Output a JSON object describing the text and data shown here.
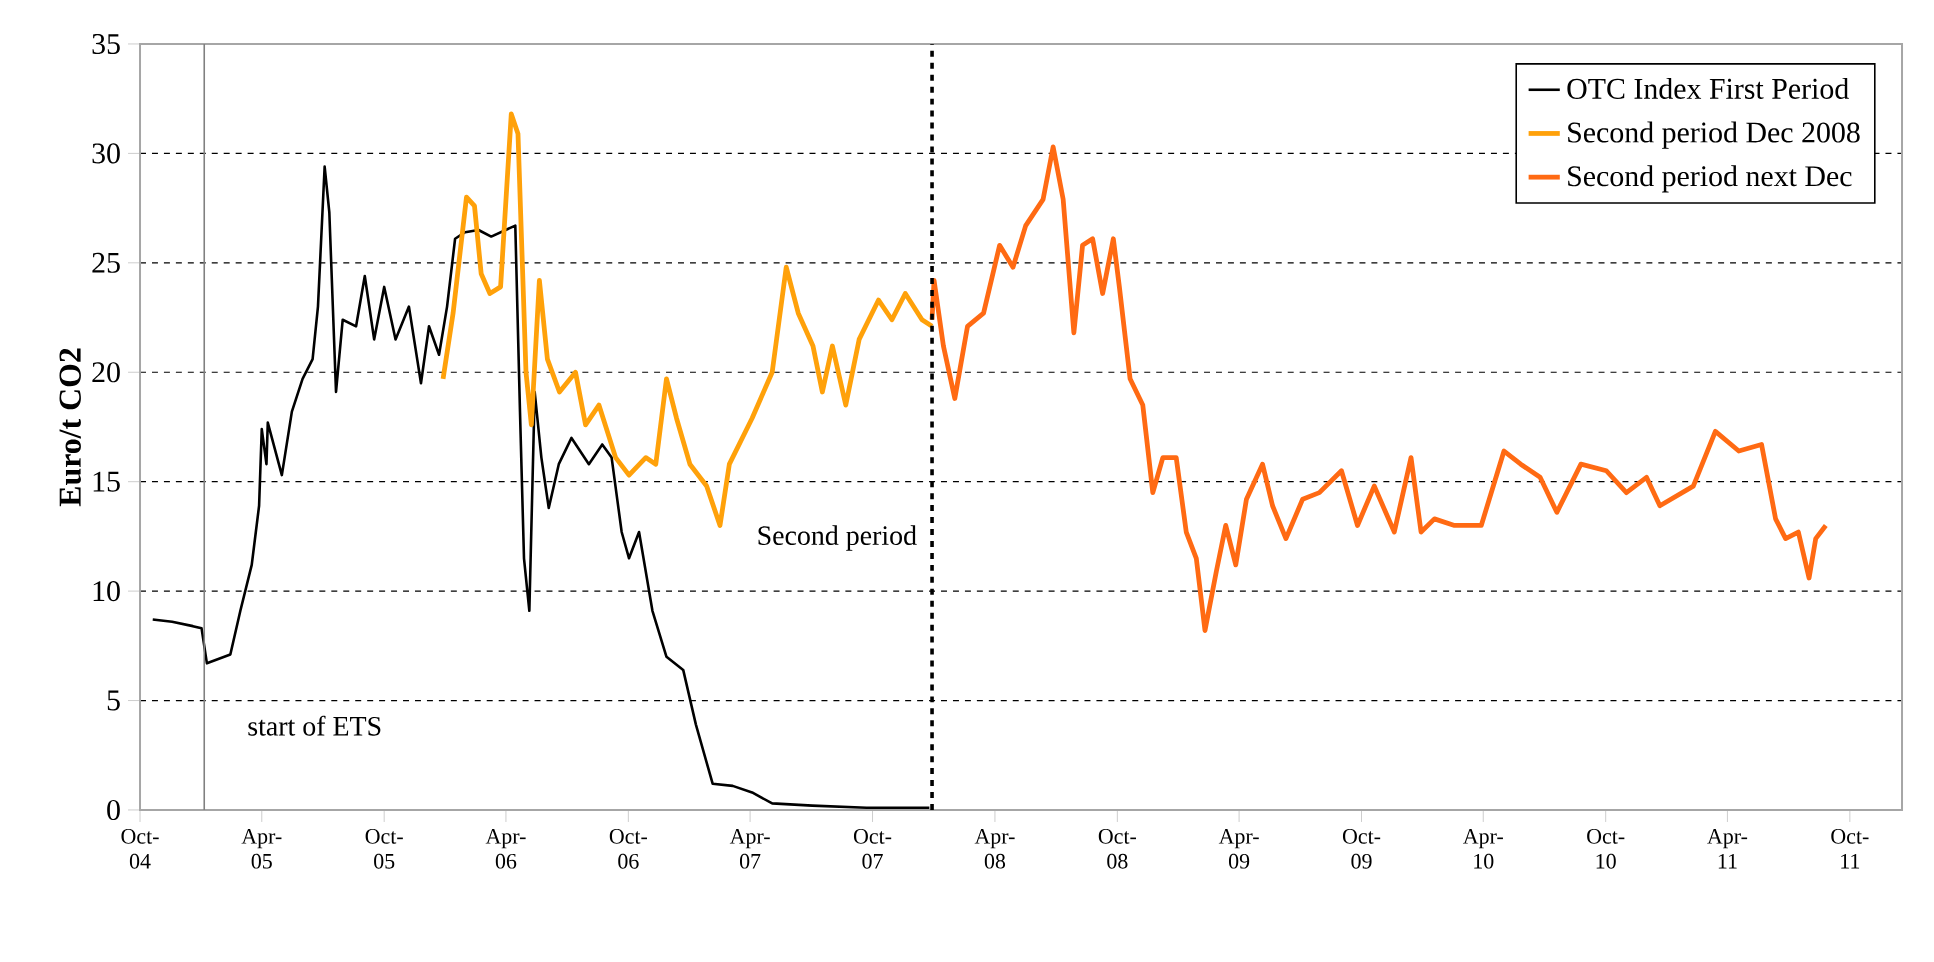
{
  "chart_data": {
    "type": "line",
    "ylabel": "Euro/t CO2",
    "xlim": [
      "2004-10-01",
      "2011-12-18"
    ],
    "ylim": [
      0,
      35
    ],
    "yticks": [
      0,
      5,
      10,
      15,
      20,
      25,
      30,
      35
    ],
    "xticks": [
      {
        "value": "2004-10-01",
        "label": "Oct-04"
      },
      {
        "value": "2005-04-01",
        "label": "Apr-05"
      },
      {
        "value": "2005-10-01",
        "label": "Oct-05"
      },
      {
        "value": "2006-04-01",
        "label": "Apr-06"
      },
      {
        "value": "2006-10-01",
        "label": "Oct-06"
      },
      {
        "value": "2007-04-01",
        "label": "Apr-07"
      },
      {
        "value": "2007-10-01",
        "label": "Oct-07"
      },
      {
        "value": "2008-04-01",
        "label": "Apr-08"
      },
      {
        "value": "2008-10-01",
        "label": "Oct-08"
      },
      {
        "value": "2009-04-01",
        "label": "Apr-09"
      },
      {
        "value": "2009-10-01",
        "label": "Oct-09"
      },
      {
        "value": "2010-04-01",
        "label": "Apr-10"
      },
      {
        "value": "2010-10-01",
        "label": "Oct-10"
      },
      {
        "value": "2011-04-01",
        "label": "Apr-11"
      },
      {
        "value": "2011-10-01",
        "label": "Oct-11"
      }
    ],
    "grid": "y",
    "legend": "top right",
    "series": [
      {
        "name": "OTC Index First Period",
        "color": "#000000",
        "x": [
          "2004-10-20",
          "2004-11-18",
          "2004-12-19",
          "2005-01-01",
          "2005-01-09",
          "2005-02-13",
          "2005-02-28",
          "2005-03-17",
          "2005-03-28",
          "2005-04-01",
          "2005-04-08",
          "2005-04-10",
          "2005-05-01",
          "2005-05-16",
          "2005-06-01",
          "2005-06-16",
          "2005-06-24",
          "2005-07-04",
          "2005-07-11",
          "2005-07-21",
          "2005-07-31",
          "2005-08-20",
          "2005-09-02",
          "2005-09-16",
          "2005-10-01",
          "2005-10-18",
          "2005-11-07",
          "2005-11-25",
          "2005-12-07",
          "2005-12-22",
          "2006-01-03",
          "2006-01-15",
          "2006-01-30",
          "2006-02-19",
          "2006-03-10",
          "2006-04-15",
          "2006-04-22",
          "2006-04-28",
          "2006-05-06",
          "2006-05-14",
          "2006-05-24",
          "2006-06-04",
          "2006-06-19",
          "2006-07-08",
          "2006-08-03",
          "2006-08-23",
          "2006-09-06",
          "2006-09-21",
          "2006-10-02",
          "2006-10-17",
          "2006-11-06",
          "2006-11-27",
          "2006-12-22",
          "2007-01-10",
          "2007-02-04",
          "2007-03-06",
          "2007-04-04",
          "2007-05-04",
          "2007-07-03",
          "2007-09-22",
          "2007-12-25"
        ],
        "values": [
          8.7,
          8.6,
          8.4,
          8.3,
          6.7,
          7.1,
          9.1,
          11.2,
          13.9,
          17.4,
          15.8,
          17.7,
          15.3,
          18.2,
          19.7,
          20.6,
          23.0,
          29.4,
          27.3,
          19.1,
          22.4,
          22.1,
          24.4,
          21.5,
          23.9,
          21.5,
          23.0,
          19.5,
          22.1,
          20.8,
          23.0,
          26.1,
          26.4,
          26.5,
          26.2,
          26.7,
          18.2,
          11.5,
          9.1,
          19.1,
          16.1,
          13.8,
          15.8,
          17.0,
          15.8,
          16.7,
          16.1,
          12.7,
          11.5,
          12.7,
          9.1,
          7.0,
          6.4,
          3.9,
          1.2,
          1.1,
          0.8,
          0.3,
          0.2,
          0.1,
          0.1
        ]
      },
      {
        "name": "Second period Dec 2008",
        "color": "#ffa10a",
        "x": [
          "2005-12-28",
          "2006-01-12",
          "2006-02-01",
          "2006-02-13",
          "2006-02-23",
          "2006-03-08",
          "2006-03-24",
          "2006-04-09",
          "2006-04-19",
          "2006-05-01",
          "2006-05-09",
          "2006-05-21",
          "2006-06-02",
          "2006-06-20",
          "2006-07-14",
          "2006-07-29",
          "2006-08-18",
          "2006-09-12",
          "2006-10-02",
          "2006-10-27",
          "2006-11-11",
          "2006-11-27",
          "2006-12-12",
          "2007-01-01",
          "2007-01-26",
          "2007-02-15",
          "2007-03-01",
          "2007-04-04",
          "2007-05-04",
          "2007-05-25",
          "2007-06-12",
          "2007-07-04",
          "2007-07-18",
          "2007-08-02",
          "2007-08-22",
          "2007-09-11",
          "2007-10-10",
          "2007-10-30",
          "2007-11-19",
          "2007-12-14",
          "2007-12-29"
        ],
        "values": [
          19.7,
          22.7,
          28.0,
          27.6,
          24.5,
          23.6,
          23.9,
          31.8,
          30.9,
          20.0,
          17.6,
          24.2,
          20.6,
          19.1,
          20.0,
          17.6,
          18.5,
          16.1,
          15.3,
          16.1,
          15.8,
          19.7,
          17.9,
          15.8,
          14.8,
          13.0,
          15.8,
          17.9,
          20.0,
          24.8,
          22.7,
          21.2,
          19.1,
          21.2,
          18.5,
          21.5,
          23.3,
          22.4,
          23.6,
          22.4,
          22.1
        ]
      },
      {
        "name": "Second period next Dec",
        "color": "#ff6a13",
        "x": [
          "2007-12-29",
          "2008-01-01",
          "2008-01-15",
          "2008-02-01",
          "2008-02-20",
          "2008-03-15",
          "2008-04-08",
          "2008-04-28",
          "2008-05-17",
          "2008-06-12",
          "2008-06-27",
          "2008-07-12",
          "2008-07-28",
          "2008-08-10",
          "2008-08-25",
          "2008-09-09",
          "2008-09-25",
          "2008-10-04",
          "2008-10-20",
          "2008-11-08",
          "2008-11-23",
          "2008-12-08",
          "2008-12-28",
          "2009-01-12",
          "2009-01-27",
          "2009-02-09",
          "2009-02-26",
          "2009-03-12",
          "2009-03-27",
          "2009-04-12",
          "2009-05-06",
          "2009-05-21",
          "2009-06-10",
          "2009-07-05",
          "2009-07-30",
          "2009-09-01",
          "2009-09-25",
          "2009-10-20",
          "2009-11-19",
          "2009-12-14",
          "2009-12-29",
          "2010-01-18",
          "2010-02-17",
          "2010-03-29",
          "2010-05-02",
          "2010-05-27",
          "2010-06-25",
          "2010-07-20",
          "2010-08-25",
          "2010-10-02",
          "2010-11-01",
          "2010-12-01",
          "2010-12-21",
          "2011-02-09",
          "2011-03-14",
          "2011-04-18",
          "2011-05-22",
          "2011-06-12",
          "2011-06-27",
          "2011-07-16",
          "2011-08-01",
          "2011-08-11",
          "2011-08-26"
        ],
        "values": [
          22.4,
          24.2,
          21.2,
          18.8,
          22.1,
          22.7,
          25.8,
          24.8,
          26.7,
          27.9,
          30.3,
          27.9,
          21.8,
          25.8,
          26.1,
          23.6,
          26.1,
          23.9,
          19.7,
          18.5,
          14.5,
          16.1,
          16.1,
          12.7,
          11.5,
          8.2,
          10.9,
          13.0,
          11.2,
          14.2,
          15.8,
          13.9,
          12.4,
          14.2,
          14.5,
          15.5,
          13.0,
          14.8,
          12.7,
          16.1,
          12.7,
          13.3,
          13.0,
          13.0,
          16.4,
          15.8,
          15.2,
          13.6,
          15.8,
          15.5,
          14.5,
          15.2,
          13.9,
          14.8,
          17.3,
          16.4,
          16.7,
          13.3,
          12.4,
          12.7,
          10.6,
          12.4,
          13.0
        ]
      }
    ],
    "ref_lines": [
      {
        "axis": "x",
        "value": "2005-01-05",
        "label": "start of ETS",
        "color": "#808080",
        "line_style": "solid"
      },
      {
        "axis": "x",
        "value": "2007-12-29",
        "label": "Second period",
        "color": "#000000",
        "line_style": "dashed"
      }
    ]
  }
}
